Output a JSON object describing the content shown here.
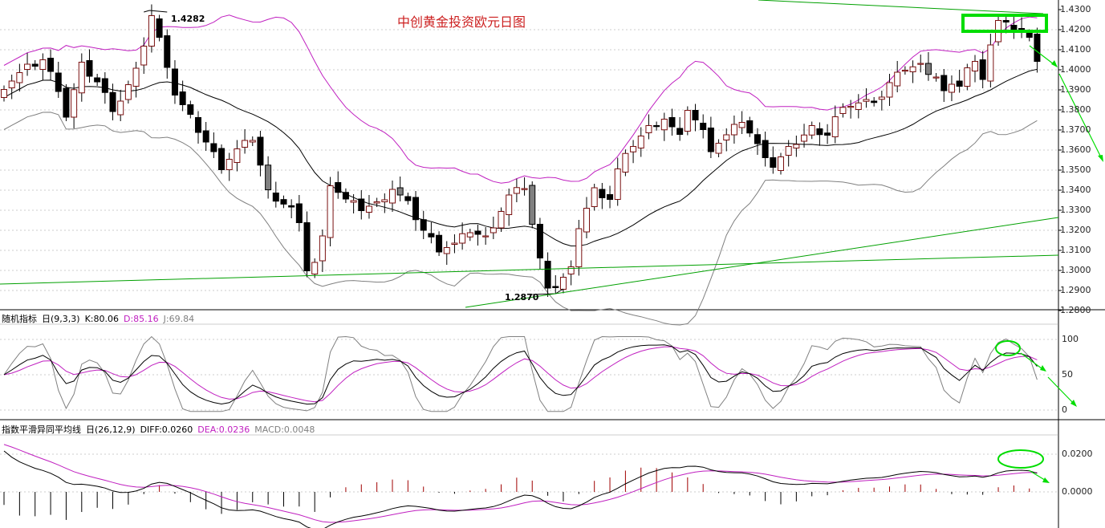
{
  "chart_data": [
    {
      "type": "candlestick",
      "title": "中创黄金投资欧元日图",
      "y_ticks": [
        "1.4300",
        "1.4200",
        "1.4100",
        "1.4000",
        "1.3900",
        "1.3800",
        "1.3700",
        "1.3600",
        "1.3500",
        "1.3400",
        "1.3300",
        "1.3200",
        "1.3100",
        "1.3000",
        "1.2900",
        "1.2800"
      ],
      "ylim": [
        1.28,
        1.43
      ],
      "annotations": {
        "high_label": "1.4282",
        "low_label": "1.2870"
      },
      "colors": {
        "up": "#000000",
        "down": "#000000",
        "upper_band": "#c020c0",
        "middle_band": "#000000",
        "lower_band": "#808080",
        "trendline": "#00a000",
        "highlight": "#00dd00"
      }
    },
    {
      "type": "line",
      "indicator_name": "随机指标",
      "params": "日(9,3,3)",
      "K": "K:80.06",
      "D": "D:85.16",
      "J": "J:69.84",
      "y_ticks": [
        "100",
        "50",
        "0"
      ],
      "ylim": [
        0,
        100
      ],
      "colors": {
        "K": "#000000",
        "D": "#c020c0",
        "J": "#808080"
      }
    },
    {
      "type": "line",
      "indicator_name": "指数平滑异同平均线",
      "params": "日(26,12,9)",
      "DIFF": "DIFF:0.0260",
      "DEA": "DEA:0.0236",
      "MACD": "MACD:0.0048",
      "y_ticks": [
        "0.0200",
        "0.0000"
      ],
      "colors": {
        "DIFF": "#000000",
        "DEA": "#c020c0",
        "MACD": "#808080",
        "hist_pos": "#a00000",
        "hist_neg": "#000000"
      }
    }
  ]
}
